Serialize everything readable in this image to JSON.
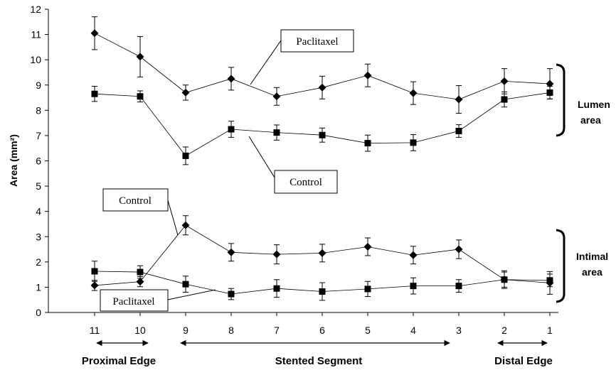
{
  "chart_data": {
    "type": "line",
    "ylabel": "Area (mm²)",
    "ylim": [
      0,
      12
    ],
    "yticks": [
      "0",
      "1",
      "2",
      "3",
      "4",
      "5",
      "6",
      "7",
      "8",
      "9",
      "10",
      "11",
      "12"
    ],
    "categories": [
      "11",
      "10",
      "9",
      "8",
      "7",
      "6",
      "5",
      "4",
      "3",
      "2",
      "1"
    ],
    "grid": false,
    "series": [
      {
        "group": "lumen",
        "marker": "diamond",
        "values": [
          11.05,
          10.12,
          8.7,
          9.25,
          8.55,
          8.9,
          9.38,
          8.68,
          8.43,
          9.15,
          9.05
        ],
        "err": [
          0.65,
          0.8,
          0.3,
          0.45,
          0.35,
          0.45,
          0.45,
          0.45,
          0.55,
          0.5,
          0.6
        ]
      },
      {
        "group": "lumen",
        "marker": "square",
        "values": [
          8.65,
          8.55,
          6.2,
          7.25,
          7.12,
          7.02,
          6.7,
          6.72,
          7.18,
          8.43,
          8.7
        ],
        "err": [
          0.3,
          0.22,
          0.35,
          0.32,
          0.3,
          0.28,
          0.32,
          0.32,
          0.25,
          0.3,
          0.25
        ]
      },
      {
        "group": "intimal",
        "marker": "diamond",
        "values": [
          1.07,
          1.22,
          3.45,
          2.38,
          2.3,
          2.35,
          2.6,
          2.27,
          2.5,
          1.3,
          1.17
        ],
        "err": [
          0.2,
          0.2,
          0.38,
          0.35,
          0.38,
          0.35,
          0.35,
          0.35,
          0.37,
          0.35,
          0.45
        ]
      },
      {
        "group": "intimal",
        "marker": "square",
        "values": [
          1.63,
          1.6,
          1.12,
          0.73,
          0.95,
          0.83,
          0.93,
          1.05,
          1.05,
          1.3,
          1.27
        ],
        "err": [
          0.4,
          0.25,
          0.32,
          0.22,
          0.35,
          0.35,
          0.3,
          0.32,
          0.25,
          0.3,
          0.25
        ]
      }
    ],
    "callouts": {
      "lumen_paclitaxel": "Paclitaxel",
      "lumen_control": "Control",
      "intimal_control": "Control",
      "intimal_paclitaxel": "Paclitaxel"
    },
    "segments": {
      "proximal": "Proximal Edge",
      "stented": "Stented Segment",
      "distal": "Distal Edge"
    },
    "brackets": {
      "lumen": [
        "Lumen",
        "area"
      ],
      "intimal": [
        "Intimal",
        "area"
      ]
    }
  }
}
